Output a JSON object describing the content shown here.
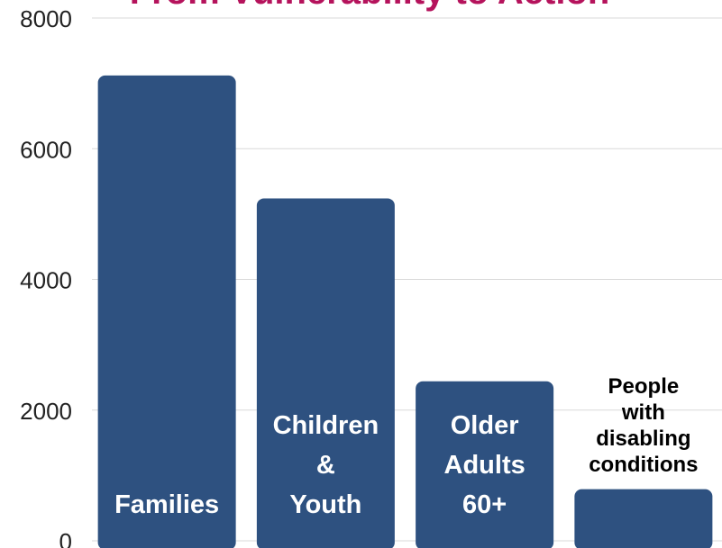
{
  "chart_data": {
    "type": "bar",
    "title": "From Vulnerability to Action",
    "xlabel": "",
    "ylabel": "",
    "ylim": [
      0,
      8000
    ],
    "yticks": [
      0,
      2000,
      4000,
      6000,
      8000
    ],
    "grid": true,
    "categories": [
      "Families",
      "Children & Youth",
      "Older Adults 60+",
      "People with disabling conditions"
    ],
    "values": [
      7120,
      5240,
      2440,
      790
    ],
    "bar_color": "#2e5180",
    "title_color": "#b5135c"
  }
}
